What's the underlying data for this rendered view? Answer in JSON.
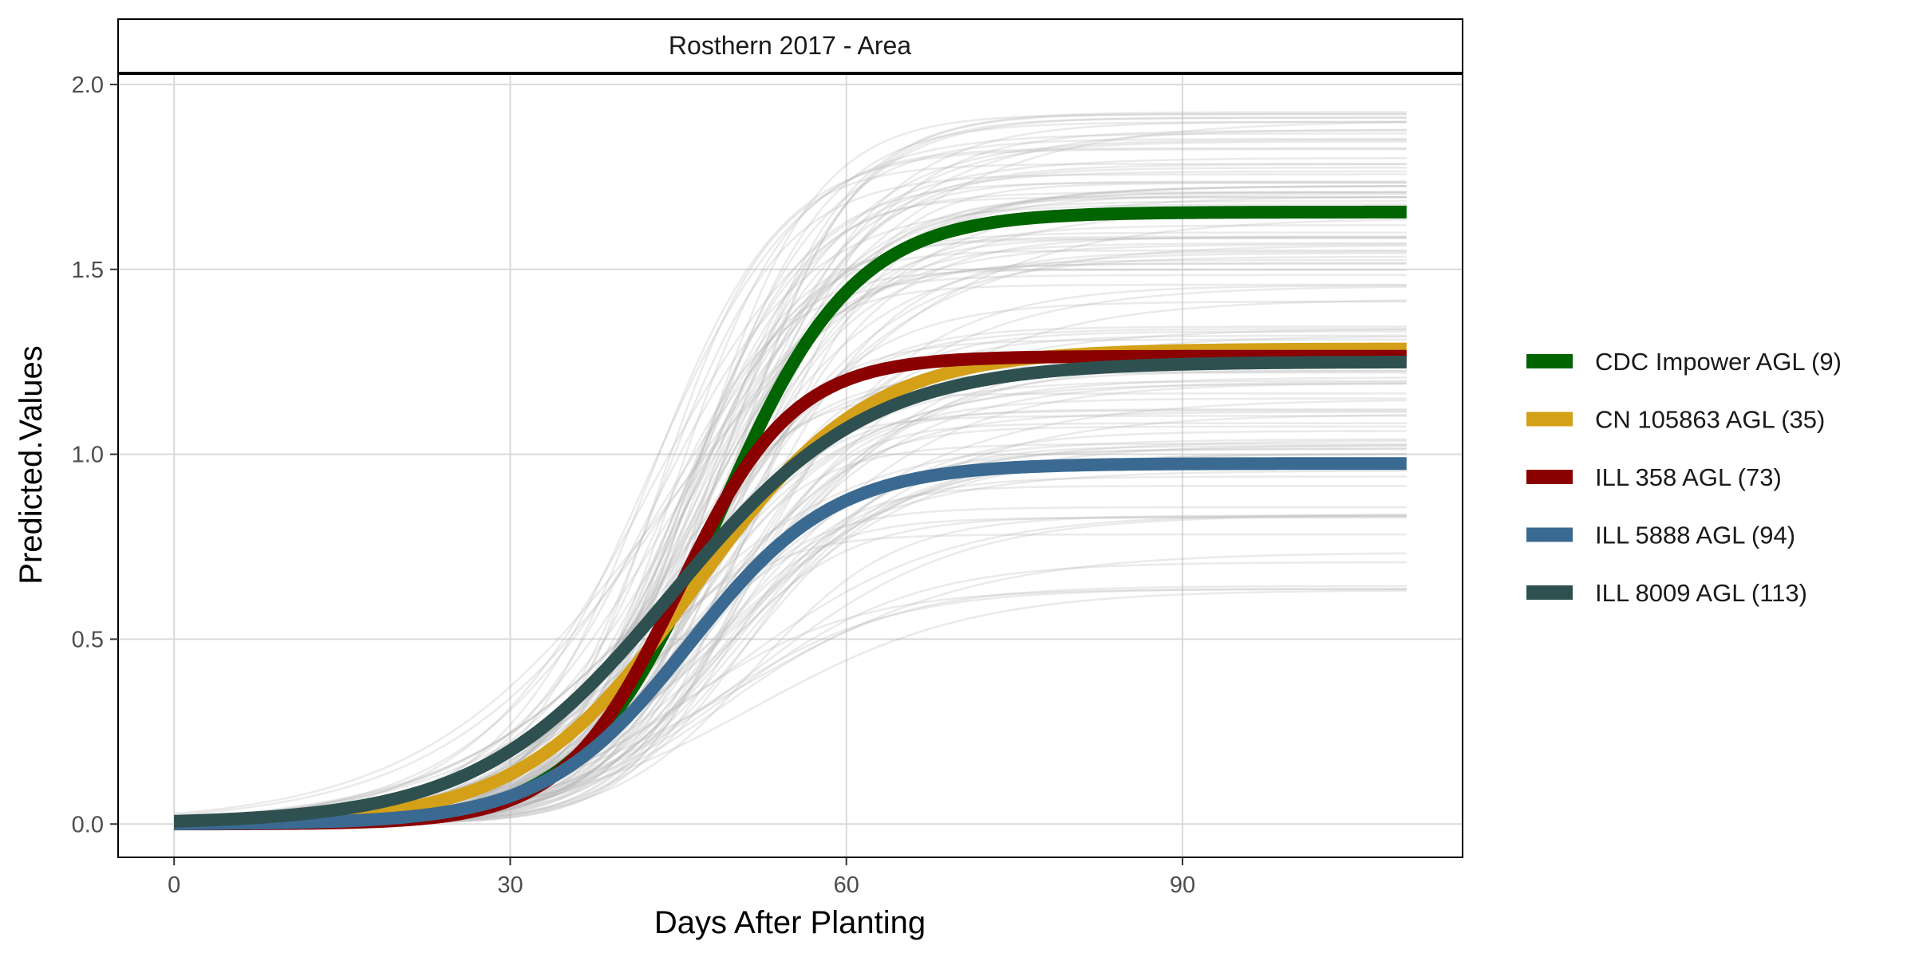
{
  "chart_data": {
    "type": "line",
    "title": "Rosthern 2017 - Area",
    "xlabel": "Days After Planting",
    "ylabel": "Predicted.Values",
    "xlim": [
      -5,
      115
    ],
    "ylim": [
      -0.09,
      2.03
    ],
    "x_ticks": [
      0,
      30,
      60,
      90
    ],
    "y_ticks": [
      0.0,
      0.5,
      1.0,
      1.5,
      2.0
    ],
    "x_tick_labels": [
      "0",
      "30",
      "60",
      "90"
    ],
    "y_tick_labels": [
      "0.0",
      "0.5",
      "1.0",
      "1.5",
      "2.0"
    ],
    "grid": true,
    "legend_position": "right",
    "x_range": [
      0,
      110
    ],
    "model": "logistic",
    "background_series": {
      "description": "",
      "color": "#b3b3b3",
      "count": 120,
      "asymptote_range": [
        0.62,
        1.93
      ],
      "k_range": [
        0.09,
        0.22
      ],
      "midpoint_range": [
        42,
        52
      ]
    },
    "series": [
      {
        "name": "CDC Impower AGL (9)",
        "color": "#006400",
        "asymptote": 1.655,
        "k": 0.165,
        "midpoint": 48.5
      },
      {
        "name": "CN 105863 AGL (35)",
        "color": "#d4a017",
        "asymptote": 1.285,
        "k": 0.13,
        "midpoint": 46.5
      },
      {
        "name": "ILL 358 AGL (73)",
        "color": "#8b0000",
        "asymptote": 1.265,
        "k": 0.195,
        "midpoint": 45.0
      },
      {
        "name": "ILL 5888 AGL (94)",
        "color": "#3a6a91",
        "asymptote": 0.975,
        "k": 0.155,
        "midpoint": 46.0
      },
      {
        "name": "ILL 8009 AGL (113)",
        "color": "#2f5050",
        "asymptote": 1.25,
        "k": 0.115,
        "midpoint": 44.5
      }
    ]
  }
}
